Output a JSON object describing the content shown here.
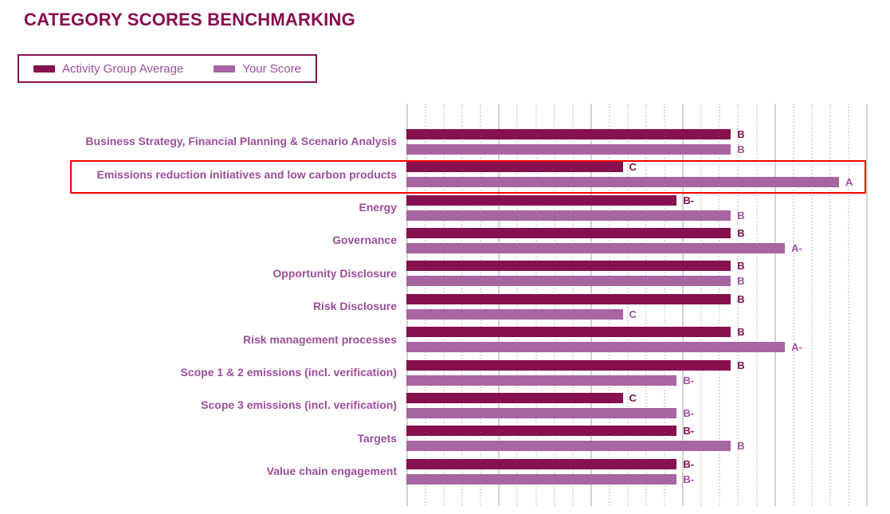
{
  "title": "CATEGORY SCORES BENCHMARKING",
  "legend": {
    "items": [
      {
        "label": "Activity Group Average",
        "color": "#87104F"
      },
      {
        "label": "Your Score",
        "color": "#A765A1"
      }
    ]
  },
  "colors": {
    "average_bar": "#87104F",
    "your_score_bar": "#A765A1",
    "title_text": "#860D4E",
    "category_label": "#9C4E9B",
    "average_grade_text": "#87104F",
    "your_score_grade_text": "#A0519F",
    "legend_border": "#8B1150",
    "highlight_box": "#FF0000",
    "grid_major": "#D2D2D2",
    "grid_minor": "#DEDEDE"
  },
  "chart_data": {
    "type": "bar",
    "orientation": "horizontal",
    "title": "CATEGORY SCORES BENCHMARKING",
    "categories": [
      "Business Strategy, Financial Planning & Scenario Analysis",
      "Emissions reduction initiatives and low carbon products",
      "Energy",
      "Governance",
      "Opportunity Disclosure",
      "Risk Disclosure",
      "Risk management processes",
      "Scope 1 & 2 emissions (incl. verification)",
      "Scope 3 emissions (incl. verification)",
      "Targets",
      "Value chain engagement"
    ],
    "series": [
      {
        "name": "Activity Group Average",
        "grades": [
          "B",
          "C",
          "B-",
          "B",
          "B",
          "B",
          "B",
          "B",
          "C",
          "B-",
          "B-"
        ],
        "values": [
          6,
          4,
          5,
          6,
          6,
          6,
          6,
          6,
          4,
          5,
          5
        ]
      },
      {
        "name": "Your Score",
        "grades": [
          "B",
          "A",
          "B",
          "A-",
          "B",
          "C",
          "A-",
          "B-",
          "B-",
          "B",
          "B-"
        ],
        "values": [
          6,
          8,
          6,
          7,
          6,
          4,
          7,
          5,
          5,
          6,
          5
        ]
      }
    ],
    "grade_scale": {
      "C": 4,
      "B-": 5,
      "B": 6,
      "A-": 7,
      "A": 8
    },
    "xlim": [
      0,
      8.5
    ],
    "grid": {
      "minor_step": 0.34,
      "major_step": 1.7,
      "style": "vertical dotted minors, solid majors"
    },
    "legend_position": "top-left",
    "highlighted_category": "Emissions reduction initiatives and low carbon products",
    "highlight_grades": {
      "average": "C",
      "your_score": "A"
    }
  }
}
